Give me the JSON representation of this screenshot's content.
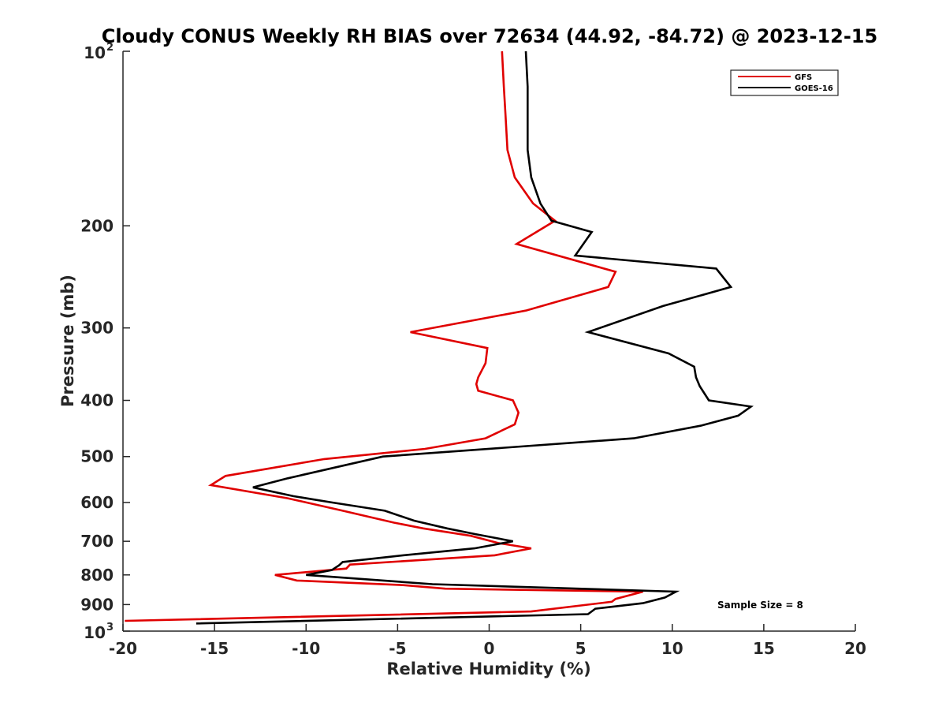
{
  "chart_data": {
    "type": "line",
    "title": "Cloudy CONUS Weekly RH BIAS over 72634 (44.92, -84.72) @ 2023-12-15",
    "xlabel": "Relative Humidity (%)",
    "ylabel": "Pressure (mb)",
    "xlim": [
      -20,
      20
    ],
    "ylim": [
      100,
      1000
    ],
    "y_scale": "log",
    "y_reversed": true,
    "grid": false,
    "legend_position": "top-right",
    "x_ticks": [
      "-20",
      "-15",
      "-10",
      "-5",
      "0",
      "5",
      "10",
      "15",
      "20"
    ],
    "y_ticks": [
      "200",
      "300",
      "400",
      "500",
      "600",
      "700",
      "800",
      "900"
    ],
    "y_ticks_exp": [
      {
        "base": "10",
        "exp": "2",
        "value": 100
      },
      {
        "base": "10",
        "exp": "3",
        "value": 1000
      }
    ],
    "annotation": "Sample Size = 8",
    "series": [
      {
        "name": "GFS",
        "color": "#e00000",
        "x": [
          0.7,
          0.8,
          0.9,
          1.0,
          1.4,
          2.4,
          3.6,
          1.5,
          6.9,
          6.5,
          2.0,
          -4.3,
          -0.1,
          -0.2,
          -0.6,
          -0.7,
          -0.6,
          1.3,
          1.6,
          1.4,
          -0.2,
          -3.5,
          -9.0,
          -14.4,
          -15.2,
          -11.0,
          -8.0,
          -5.2,
          -3.6,
          -1.0,
          0.5,
          2.3,
          0.3,
          -4.0,
          -7.6,
          -7.8,
          -11.7,
          -10.5,
          -4.7,
          -2.4,
          8.4,
          6.9,
          6.7,
          2.3,
          -19.9
        ],
        "y": [
          100,
          115,
          130,
          148,
          165,
          183,
          196,
          215,
          240,
          255,
          280,
          305,
          325,
          345,
          365,
          375,
          385,
          400,
          420,
          440,
          465,
          485,
          505,
          540,
          560,
          590,
          620,
          650,
          665,
          685,
          705,
          720,
          740,
          755,
          768,
          780,
          800,
          818,
          833,
          845,
          855,
          880,
          890,
          925,
          960
        ]
      },
      {
        "name": "GOES-16",
        "color": "#000000",
        "x": [
          2.0,
          2.1,
          2.1,
          2.1,
          2.3,
          2.8,
          3.4,
          5.6,
          4.7,
          12.4,
          13.2,
          9.5,
          5.4,
          9.8,
          11.2,
          11.3,
          11.5,
          12.0,
          14.3,
          13.6,
          11.6,
          7.9,
          -5.8,
          -11.0,
          -12.9,
          -10.7,
          -8.6,
          -5.7,
          -4.1,
          -2.3,
          -0.8,
          1.3,
          -0.8,
          -4.7,
          -8.0,
          -8.2,
          -8.6,
          -10.0,
          -3.1,
          10.2,
          9.6,
          8.4,
          5.8,
          5.4,
          -16.0
        ],
        "y": [
          100,
          115,
          130,
          148,
          165,
          183,
          196,
          205,
          225,
          237,
          255,
          275,
          305,
          332,
          350,
          365,
          378,
          400,
          410,
          425,
          442,
          465,
          500,
          545,
          565,
          585,
          600,
          620,
          645,
          665,
          680,
          700,
          720,
          740,
          760,
          770,
          785,
          800,
          830,
          855,
          875,
          895,
          915,
          935,
          970
        ]
      }
    ]
  }
}
